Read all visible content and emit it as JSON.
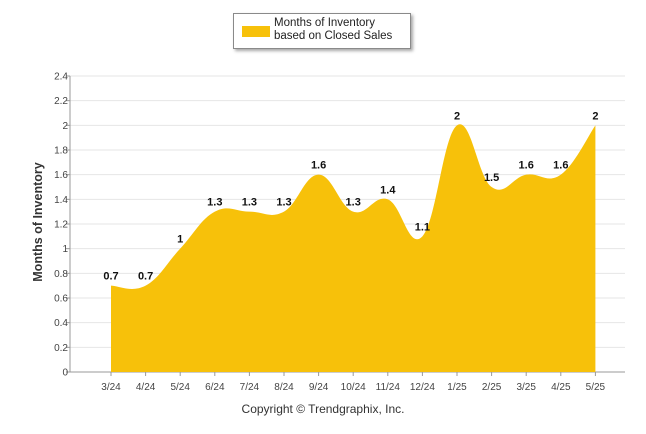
{
  "chart_data": {
    "type": "area",
    "categories": [
      "3/24",
      "4/24",
      "5/24",
      "6/24",
      "7/24",
      "8/24",
      "9/24",
      "10/24",
      "11/24",
      "12/24",
      "1/25",
      "2/25",
      "3/25",
      "4/25",
      "5/25"
    ],
    "series": [
      {
        "name": "Months of Inventory based on Closed Sales",
        "values": [
          0.7,
          0.7,
          1,
          1.3,
          1.3,
          1.3,
          1.6,
          1.3,
          1.4,
          1.1,
          2,
          1.5,
          1.6,
          1.6,
          2
        ],
        "labels": [
          "0.7",
          "0.7",
          "1",
          "1.3",
          "1.3",
          "1.3",
          "1.6",
          "1.3",
          "1.4",
          "1.1",
          "2",
          "1.5",
          "1.6",
          "1.6",
          "2"
        ],
        "color": "#F7C10A"
      }
    ],
    "ylabel": "Months of Inventory",
    "xlabel": "",
    "ylim": [
      0,
      2.4
    ],
    "yticks": [
      "0",
      "0.2",
      "0.4",
      "0.6",
      "0.8",
      "1",
      "1.2",
      "1.4",
      "1.6",
      "1.8",
      "2",
      "2.2",
      "2.4"
    ],
    "grid": true,
    "legend": "top-center"
  },
  "legend": {
    "label": "Months of Inventory based on Closed Sales"
  },
  "footer": {
    "copyright": "Copyright © Trendgraphix, Inc."
  },
  "colors": {
    "series": "#F7C10A",
    "grid": "#e6e6e6",
    "axis": "#999999"
  }
}
